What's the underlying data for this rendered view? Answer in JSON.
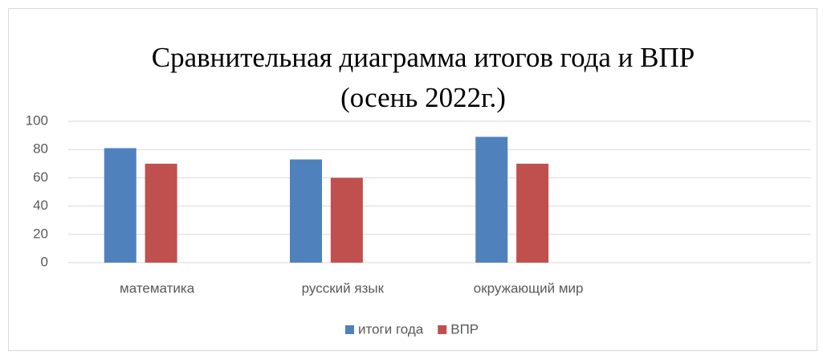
{
  "chart_data": {
    "type": "bar",
    "title": "Сравнительная диаграмма итогов года и ВПР",
    "subtitle": "(осень 2022г.)",
    "categories": [
      "математика",
      "русский язык",
      "окружающий мир",
      null
    ],
    "series": [
      {
        "name": "итоги года",
        "color": "#4f81bd",
        "values": [
          81,
          73,
          89,
          null
        ]
      },
      {
        "name": "ВПР",
        "color": "#c0504d",
        "values": [
          70,
          60,
          70,
          null
        ]
      }
    ],
    "ylim": [
      0,
      100
    ],
    "yticks": [
      0,
      20,
      40,
      60,
      80,
      100
    ],
    "grid": true,
    "legend": "bottom"
  }
}
